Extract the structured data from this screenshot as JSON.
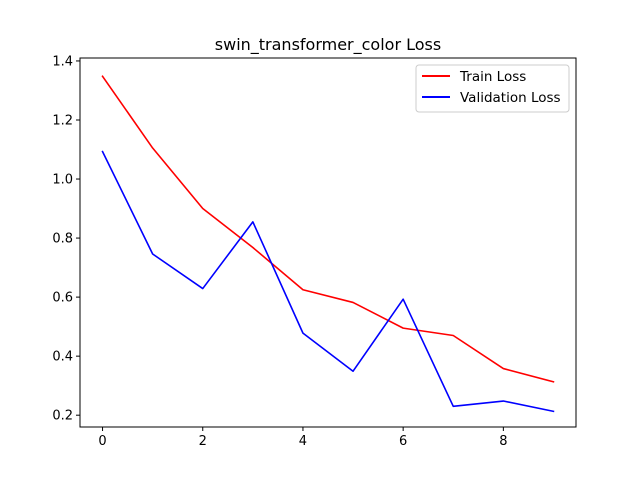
{
  "chart_data": {
    "type": "line",
    "title": "swin_transformer_color Loss",
    "xlabel": "",
    "ylabel": "",
    "x": [
      0,
      1,
      2,
      3,
      4,
      5,
      6,
      7,
      8,
      9
    ],
    "xlim": [
      -0.45,
      9.45
    ],
    "ylim": [
      0.16,
      1.41
    ],
    "xticks": [
      0,
      2,
      4,
      6,
      8
    ],
    "yticks": [
      0.2,
      0.4,
      0.6,
      0.8,
      1.0,
      1.2,
      1.4
    ],
    "ytick_labels": [
      "0.2",
      "0.4",
      "0.6",
      "0.8",
      "1.0",
      "1.2",
      "1.4"
    ],
    "grid": false,
    "legend_position": "top-right",
    "series": [
      {
        "name": "Train Loss",
        "color": "#ff0000",
        "values": [
          1.348,
          1.105,
          0.9,
          0.768,
          0.625,
          0.582,
          0.495,
          0.47,
          0.358,
          0.313
        ]
      },
      {
        "name": "Validation Loss",
        "color": "#0000ff",
        "values": [
          1.093,
          0.746,
          0.629,
          0.855,
          0.478,
          0.349,
          0.593,
          0.23,
          0.248,
          0.213
        ]
      }
    ]
  }
}
